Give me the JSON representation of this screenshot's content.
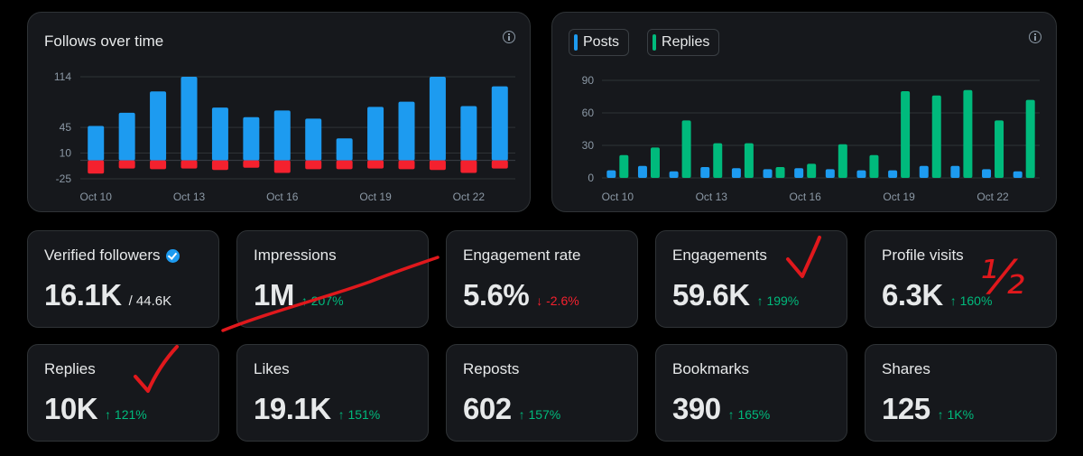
{
  "colors": {
    "follows": "#1d9bf0",
    "unfollows": "#f4212e",
    "posts": "#1d9bf0",
    "replies": "#00ba7c",
    "up": "#00ba7c",
    "down": "#f4212e",
    "annotation": "#e0181c"
  },
  "chart_data": [
    {
      "type": "bar",
      "title": "Follows over time",
      "ylim": [
        -25,
        114
      ],
      "yticks": [
        "114",
        "45",
        "10",
        "-25"
      ],
      "yticks_values": [
        114,
        45,
        10,
        -25
      ],
      "xticks": [
        "Oct 10",
        "Oct 13",
        "Oct 16",
        "Oct 19",
        "Oct 22"
      ],
      "x_categories": [
        "Oct 10",
        "Oct 11",
        "Oct 12",
        "Oct 13",
        "Oct 14",
        "Oct 15",
        "Oct 16",
        "Oct 17",
        "Oct 18",
        "Oct 19",
        "Oct 20",
        "Oct 21",
        "Oct 22",
        "Oct 23"
      ],
      "series": [
        {
          "name": "Follows",
          "values": [
            47,
            65,
            94,
            114,
            72,
            59,
            68,
            57,
            30,
            73,
            80,
            114,
            74,
            101
          ]
        },
        {
          "name": "Unfollows",
          "values": [
            -18,
            -11,
            -12,
            -11,
            -13,
            -10,
            -17,
            -12,
            -12,
            -11,
            -12,
            -13,
            -17,
            -11
          ]
        }
      ]
    },
    {
      "type": "bar",
      "legend": [
        "Posts",
        "Replies"
      ],
      "ylim": [
        0,
        90
      ],
      "yticks": [
        "90",
        "60",
        "30",
        "0"
      ],
      "yticks_values": [
        90,
        60,
        30,
        0
      ],
      "xticks": [
        "Oct 10",
        "Oct 13",
        "Oct 16",
        "Oct 19",
        "Oct 22"
      ],
      "x_categories": [
        "Oct 10",
        "Oct 11",
        "Oct 12",
        "Oct 13",
        "Oct 14",
        "Oct 15",
        "Oct 16",
        "Oct 17",
        "Oct 18",
        "Oct 19",
        "Oct 20",
        "Oct 21",
        "Oct 22",
        "Oct 23"
      ],
      "series": [
        {
          "name": "Posts",
          "values": [
            7,
            11,
            6,
            10,
            9,
            8,
            9,
            8,
            7,
            7,
            11,
            11,
            8,
            6
          ]
        },
        {
          "name": "Replies",
          "values": [
            21,
            28,
            53,
            32,
            32,
            10,
            13,
            31,
            21,
            80,
            76,
            81,
            53,
            72
          ]
        }
      ]
    }
  ],
  "cards": [
    {
      "label": "Verified followers",
      "value": "16.1K",
      "sub": "/ 44.6K",
      "verified": true
    },
    {
      "label": "Impressions",
      "value": "1M",
      "delta": "↑ 207%",
      "dir": "up"
    },
    {
      "label": "Engagement rate",
      "value": "5.6%",
      "delta": "↓ -2.6%",
      "dir": "down"
    },
    {
      "label": "Engagements",
      "value": "59.6K",
      "delta": "↑ 199%",
      "dir": "up"
    },
    {
      "label": "Profile visits",
      "value": "6.3K",
      "delta": "↑ 160%",
      "dir": "up"
    },
    {
      "label": "Replies",
      "value": "10K",
      "delta": "↑ 121%",
      "dir": "up"
    },
    {
      "label": "Likes",
      "value": "19.1K",
      "delta": "↑ 151%",
      "dir": "up"
    },
    {
      "label": "Reposts",
      "value": "602",
      "delta": "↑ 157%",
      "dir": "up"
    },
    {
      "label": "Bookmarks",
      "value": "390",
      "delta": "↑ 165%",
      "dir": "up"
    },
    {
      "label": "Shares",
      "value": "125",
      "delta": "↑ 1K%",
      "dir": "up"
    }
  ],
  "annotations": {
    "half_mark": "½"
  }
}
